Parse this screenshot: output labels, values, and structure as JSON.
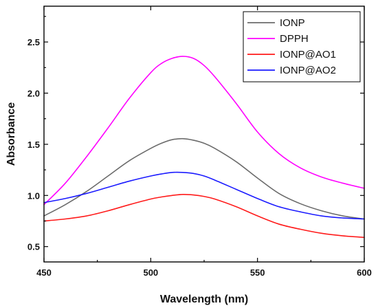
{
  "chart_data": {
    "type": "line",
    "title": "",
    "xlabel": "Wavelength (nm)",
    "ylabel": "Absorbance",
    "xlim": [
      450,
      600
    ],
    "ylim": [
      0.35,
      2.85
    ],
    "xticks": [
      450,
      500,
      550,
      600
    ],
    "xtick_labels": [
      "450",
      "500",
      "550",
      "600"
    ],
    "yticks": [
      0.5,
      1.0,
      1.5,
      2.0,
      2.5
    ],
    "ytick_labels": [
      "0.5",
      "1.0",
      "1.5",
      "2.0",
      "2.5"
    ],
    "grid": false,
    "legend_position": "top-right",
    "x": [
      450,
      460,
      470,
      480,
      490,
      500,
      505,
      510,
      515,
      520,
      525,
      530,
      540,
      550,
      560,
      570,
      580,
      590,
      600
    ],
    "series": [
      {
        "name": "IONP",
        "color": "#6b6b6b",
        "values": [
          0.8,
          0.91,
          1.04,
          1.19,
          1.34,
          1.46,
          1.51,
          1.545,
          1.555,
          1.54,
          1.51,
          1.46,
          1.33,
          1.17,
          1.02,
          0.92,
          0.85,
          0.8,
          0.77
        ]
      },
      {
        "name": "DPPH",
        "color": "#ff00ff",
        "values": [
          0.91,
          1.12,
          1.38,
          1.66,
          1.95,
          2.2,
          2.29,
          2.34,
          2.36,
          2.34,
          2.27,
          2.16,
          1.9,
          1.62,
          1.41,
          1.27,
          1.18,
          1.12,
          1.07
        ]
      },
      {
        "name": "IONP@AO1",
        "color": "#ff1a1a",
        "values": [
          0.75,
          0.77,
          0.8,
          0.85,
          0.91,
          0.965,
          0.985,
          1.0,
          1.01,
          1.005,
          0.99,
          0.965,
          0.89,
          0.8,
          0.72,
          0.67,
          0.63,
          0.605,
          0.59
        ]
      },
      {
        "name": "IONP@AO2",
        "color": "#1a1aff",
        "values": [
          0.93,
          0.97,
          1.02,
          1.08,
          1.14,
          1.19,
          1.21,
          1.225,
          1.225,
          1.215,
          1.19,
          1.15,
          1.06,
          0.97,
          0.89,
          0.84,
          0.8,
          0.78,
          0.77
        ]
      }
    ]
  }
}
